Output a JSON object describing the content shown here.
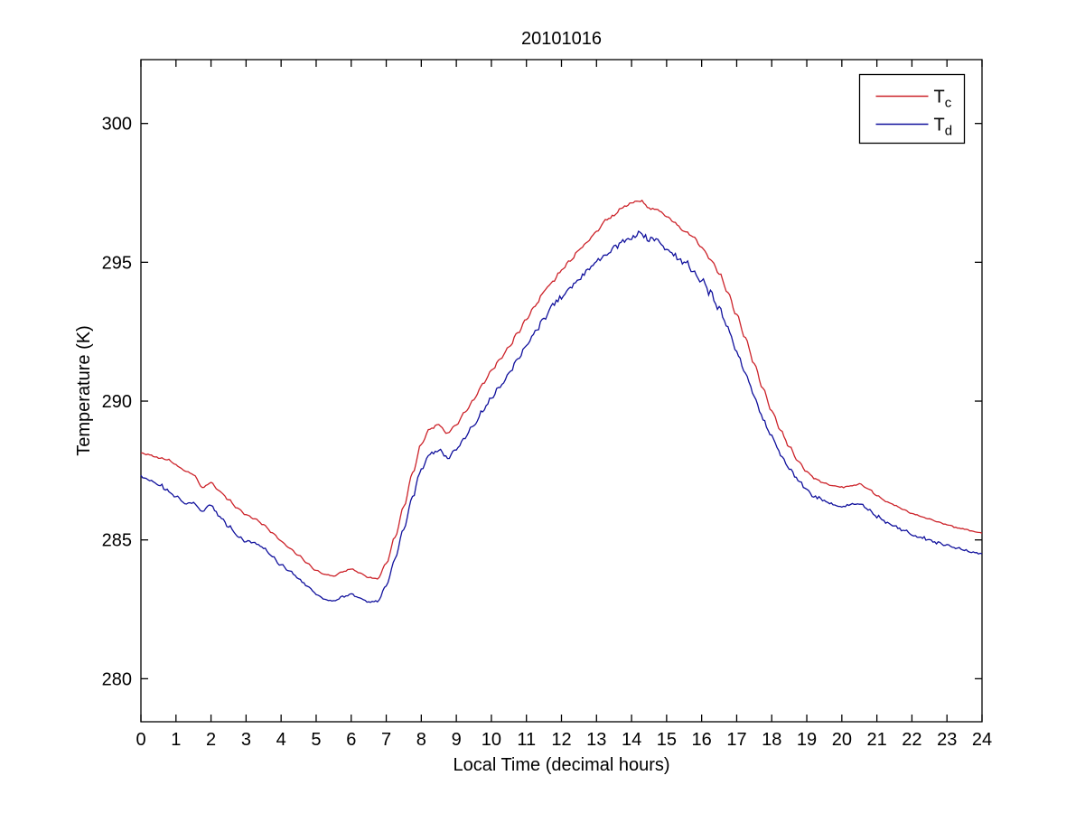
{
  "chart_data": {
    "type": "line",
    "title": "20101016",
    "xlabel": "Local Time (decimal hours)",
    "ylabel": "Temperature (K)",
    "xlim": [
      0,
      24
    ],
    "ylim": [
      278.45,
      302.3
    ],
    "xticks": [
      0,
      1,
      2,
      3,
      4,
      5,
      6,
      7,
      8,
      9,
      10,
      11,
      12,
      13,
      14,
      15,
      16,
      17,
      18,
      19,
      20,
      21,
      22,
      23,
      24
    ],
    "yticks": [
      280,
      285,
      290,
      295,
      300
    ],
    "grid": false,
    "legend_position": "top-right",
    "axis_color": "#000000",
    "background_color": "#ffffff",
    "x_start": 0,
    "x_step_hours": 0.25,
    "series": [
      {
        "name": "T_c",
        "label_base": "T",
        "label_sub": "c",
        "color": "#cc2229",
        "noise_k": [
          0.02,
          0.07
        ],
        "seed": 42,
        "values": [
          288.15,
          288.05,
          287.95,
          287.9,
          287.7,
          287.5,
          287.35,
          286.9,
          287.05,
          286.75,
          286.45,
          286.15,
          285.9,
          285.75,
          285.55,
          285.25,
          284.95,
          284.7,
          284.45,
          284.15,
          283.9,
          283.75,
          283.7,
          283.85,
          283.95,
          283.8,
          283.65,
          283.6,
          284.15,
          285.1,
          286.2,
          287.4,
          288.45,
          289.0,
          289.15,
          288.85,
          289.15,
          289.6,
          290.05,
          290.6,
          291.1,
          291.5,
          291.95,
          292.45,
          292.95,
          293.45,
          293.95,
          294.3,
          294.7,
          295.05,
          295.45,
          295.75,
          296.1,
          296.5,
          296.7,
          296.95,
          297.15,
          297.2,
          296.95,
          296.9,
          296.65,
          296.4,
          296.15,
          295.9,
          295.55,
          295.1,
          294.6,
          293.9,
          293.1,
          292.25,
          291.35,
          290.45,
          289.65,
          288.95,
          288.35,
          287.85,
          287.45,
          287.2,
          287.05,
          286.95,
          286.9,
          286.95,
          287.0,
          286.85,
          286.6,
          286.4,
          286.25,
          286.1,
          285.95,
          285.85,
          285.75,
          285.65,
          285.55,
          285.45,
          285.4,
          285.3,
          285.25
        ]
      },
      {
        "name": "T_d",
        "label_base": "T",
        "label_sub": "d",
        "color": "#10109c",
        "noise_k": [
          0.04,
          0.16
        ],
        "seed": 1337,
        "values": [
          287.3,
          287.15,
          287.0,
          286.8,
          286.55,
          286.3,
          286.35,
          286.0,
          286.25,
          285.85,
          285.5,
          285.15,
          284.95,
          284.9,
          284.7,
          284.4,
          284.1,
          283.85,
          283.6,
          283.35,
          283.05,
          282.85,
          282.8,
          282.95,
          283.05,
          282.9,
          282.75,
          282.8,
          283.35,
          284.3,
          285.4,
          286.55,
          287.55,
          288.1,
          288.25,
          287.95,
          288.25,
          288.7,
          289.15,
          289.65,
          290.1,
          290.55,
          291.0,
          291.5,
          292.0,
          292.5,
          293.0,
          293.4,
          293.75,
          294.1,
          294.4,
          294.7,
          295.0,
          295.3,
          295.5,
          295.7,
          295.9,
          296.05,
          295.85,
          295.75,
          295.45,
          295.2,
          295.0,
          294.75,
          294.35,
          293.9,
          293.35,
          292.6,
          291.8,
          291.0,
          290.15,
          289.35,
          288.7,
          288.1,
          287.6,
          287.15,
          286.8,
          286.55,
          286.4,
          286.3,
          286.2,
          286.25,
          286.3,
          286.1,
          285.85,
          285.65,
          285.5,
          285.35,
          285.2,
          285.1,
          285.0,
          284.9,
          284.8,
          284.7,
          284.65,
          284.55,
          284.5
        ]
      }
    ]
  }
}
